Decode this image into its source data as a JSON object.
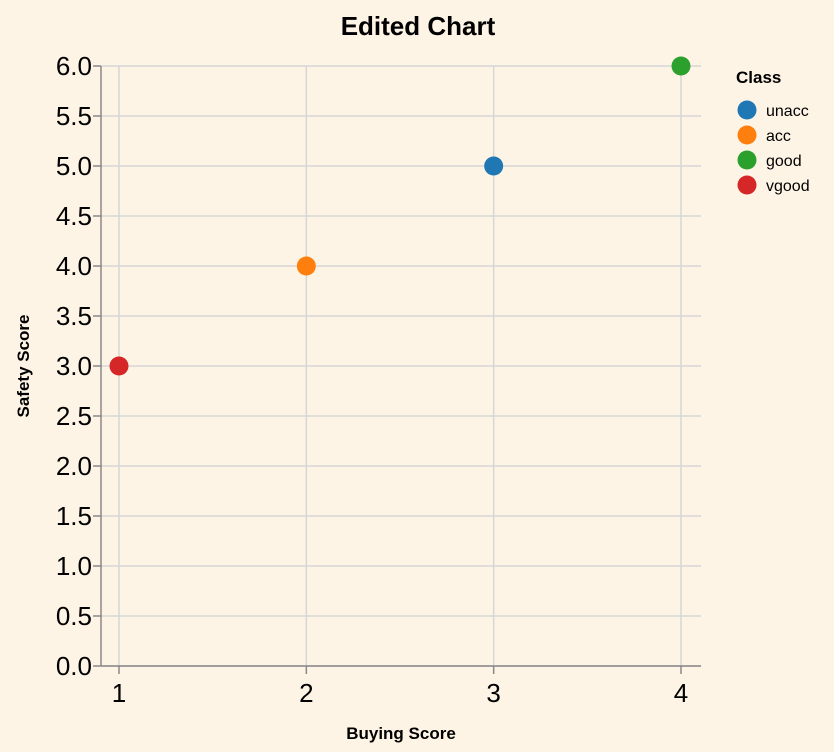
{
  "chart_data": {
    "type": "scatter",
    "title": "Edited Chart",
    "xlabel": "Buying Score",
    "ylabel": "Safety Score",
    "xlim": [
      1,
      4
    ],
    "ylim": [
      0,
      6
    ],
    "x_ticks": [
      "1",
      "2",
      "3",
      "4"
    ],
    "y_ticks": [
      "0.0",
      "0.5",
      "1.0",
      "1.5",
      "2.0",
      "2.5",
      "3.0",
      "3.5",
      "4.0",
      "4.5",
      "5.0",
      "5.5",
      "6.0"
    ],
    "grid": true,
    "legend": {
      "title": "Class",
      "placement": "top-right",
      "entries": [
        {
          "label": "unacc",
          "color": "#1f77b4"
        },
        {
          "label": "acc",
          "color": "#ff7f0e"
        },
        {
          "label": "good",
          "color": "#2ca02c"
        },
        {
          "label": "vgood",
          "color": "#d62728"
        }
      ]
    },
    "points": [
      {
        "x": 3,
        "y": 5,
        "class": "unacc",
        "color": "#1f77b4"
      },
      {
        "x": 2,
        "y": 4,
        "class": "acc",
        "color": "#ff7f0e"
      },
      {
        "x": 4,
        "y": 6,
        "class": "good",
        "color": "#2ca02c"
      },
      {
        "x": 1,
        "y": 3,
        "class": "vgood",
        "color": "#d62728"
      }
    ]
  }
}
